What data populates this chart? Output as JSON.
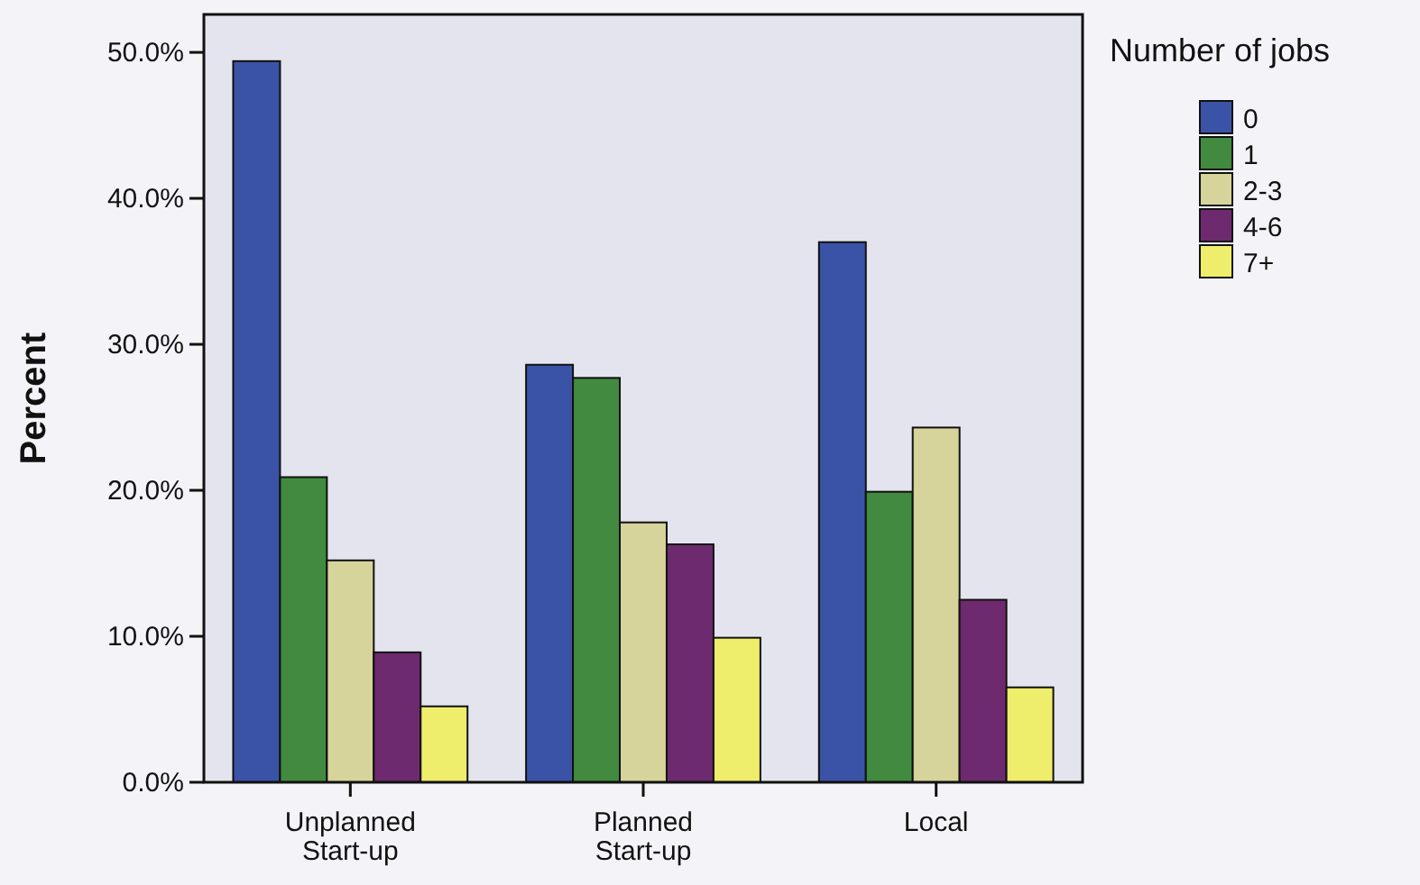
{
  "chart_data": {
    "type": "bar",
    "ylabel": "Percent",
    "legend_title": "Number of jobs",
    "legend": "top right",
    "grid": false,
    "categories": [
      "Unplanned\nStart-up",
      "Planned\nStart-up",
      "Local"
    ],
    "series": [
      {
        "name": "0",
        "color": "#3b53a6",
        "values": [
          49.4,
          28.6,
          37.0
        ]
      },
      {
        "name": "1",
        "color": "#418a3f",
        "values": [
          20.9,
          27.7,
          19.9
        ]
      },
      {
        "name": "2-3",
        "color": "#d6d49a",
        "values": [
          15.2,
          17.8,
          24.3
        ]
      },
      {
        "name": "4-6",
        "color": "#6e2a6e",
        "values": [
          8.9,
          16.3,
          12.5
        ]
      },
      {
        "name": "7+",
        "color": "#eeee6c",
        "values": [
          5.2,
          9.9,
          6.5
        ]
      }
    ],
    "ylim": [
      0,
      52.6
    ],
    "yticks": [
      {
        "value": 0,
        "label": "0.0%"
      },
      {
        "value": 10,
        "label": "10.0%"
      },
      {
        "value": 20,
        "label": "20.0%"
      },
      {
        "value": 30,
        "label": "30.0%"
      },
      {
        "value": 40,
        "label": "40.0%"
      },
      {
        "value": 50,
        "label": "50.0%"
      }
    ]
  }
}
